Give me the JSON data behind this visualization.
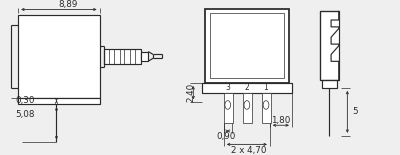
{
  "bg": "#efefef",
  "lc": "#2a2a2a",
  "lw": 0.85,
  "tlw": 0.5,
  "fs": 6.3,
  "fs_small": 5.5
}
